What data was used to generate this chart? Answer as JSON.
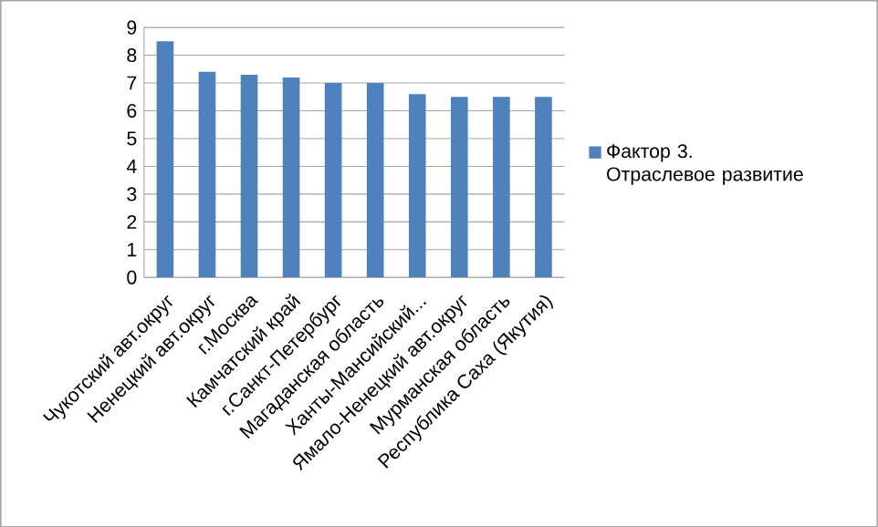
{
  "chart_data": {
    "type": "bar",
    "categories": [
      "Чукотский авт.округ",
      "Ненецкий авт.округ",
      "г.Москва",
      "Камчатский край",
      "г.Санкт-Петербург",
      "Магаданская область",
      "Ханты-Мансийский...",
      "Ямало-Ненецкий авт.округ",
      "Мурманская область",
      "Республика Саха (Якутия)"
    ],
    "series": [
      {
        "name": "Фактор 3. Отраслевое развитие",
        "color": "#4f81bd",
        "values": [
          8.5,
          7.4,
          7.3,
          7.2,
          7.0,
          7.0,
          6.6,
          6.5,
          6.5,
          6.5
        ]
      }
    ],
    "ylim": [
      0,
      9
    ],
    "yticks": [
      0,
      1,
      2,
      3,
      4,
      5,
      6,
      7,
      8,
      9
    ],
    "grid": "y",
    "legend": "right"
  }
}
